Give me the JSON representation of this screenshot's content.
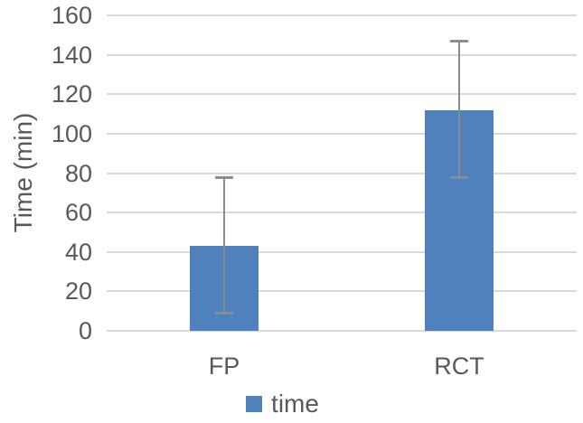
{
  "chart_data": {
    "type": "bar",
    "title": "",
    "categories": [
      "FP",
      "RCT"
    ],
    "series": [
      {
        "name": "time",
        "values": [
          43,
          112
        ],
        "error_low": [
          9,
          78
        ],
        "error_high": [
          78,
          147
        ]
      }
    ],
    "xlabel": "",
    "ylabel": "Time (min)",
    "ylim": [
      0,
      160
    ],
    "yticks": [
      0,
      20,
      40,
      60,
      80,
      100,
      120,
      140,
      160
    ],
    "grid": "horizontal",
    "legend": {
      "position": "bottom",
      "entries": [
        "time"
      ]
    },
    "colors": {
      "bar": "#4F81BD",
      "gridline": "#D9D9D9",
      "error_bar": "#8C8C8C",
      "text": "#595959",
      "background": "#FFFFFF"
    }
  }
}
